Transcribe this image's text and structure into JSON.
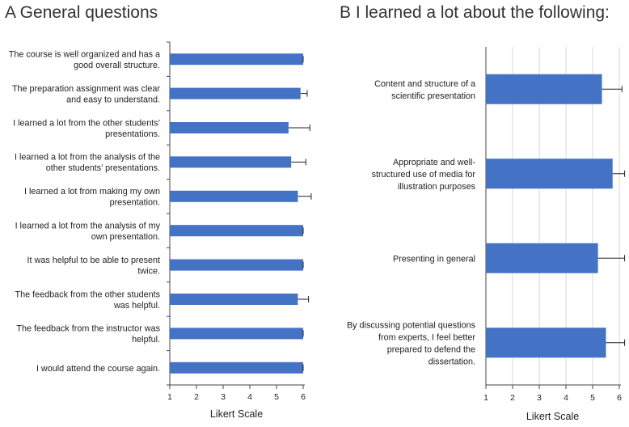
{
  "chart_data": [
    {
      "type": "bar",
      "orientation": "horizontal",
      "title": "A  General questions",
      "xlabel": "Likert Scale",
      "xlim": [
        1,
        6
      ],
      "xticks": [
        "1",
        "2",
        "3",
        "4",
        "5",
        "6"
      ],
      "grid": false,
      "categories": [
        [
          "The course is well organized and has a",
          "good overall structure."
        ],
        [
          "The preparation assignment was clear",
          "and easy to understand."
        ],
        [
          "I learned a lot from the other students’",
          "presentations."
        ],
        [
          "I learned a lot from the analysis of the",
          "other students’ presentations."
        ],
        [
          "I learned a lot from making my own",
          "presentation."
        ],
        [
          "I learned a lot from the analysis of my",
          "own presentation."
        ],
        [
          "It was helpful to be able to present",
          "twice."
        ],
        [
          "The feedback from the other students",
          "was helpful."
        ],
        [
          "The feedback from the instructor was",
          "helpful."
        ],
        [
          "I would attend the course again."
        ]
      ],
      "values": [
        6.0,
        5.9,
        5.45,
        5.55,
        5.8,
        6.0,
        6.0,
        5.8,
        6.0,
        6.0
      ],
      "errors": [
        0.0,
        0.25,
        0.8,
        0.55,
        0.5,
        0.0,
        0.0,
        0.4,
        0.0,
        0.0
      ],
      "color": "#4472c4"
    },
    {
      "type": "bar",
      "orientation": "horizontal",
      "title": "B  I learned a lot about the following:",
      "xlabel": "Likert Scale",
      "xlim": [
        1,
        6
      ],
      "xticks": [
        "1",
        "2",
        "3",
        "4",
        "5",
        "6"
      ],
      "grid": true,
      "categories": [
        [
          "Content and structure of a",
          "scientific presentation"
        ],
        [
          "Appropriate and well-",
          "structured use of media for",
          "illustration purposes"
        ],
        [
          "Presenting in general"
        ],
        [
          "By discussing potential questions",
          "from experts, I feel better",
          "prepared to defend the",
          "dissertation."
        ]
      ],
      "values": [
        5.35,
        5.75,
        5.2,
        5.5
      ],
      "errors": [
        0.75,
        0.45,
        1.0,
        0.7
      ],
      "color": "#4472c4"
    }
  ]
}
